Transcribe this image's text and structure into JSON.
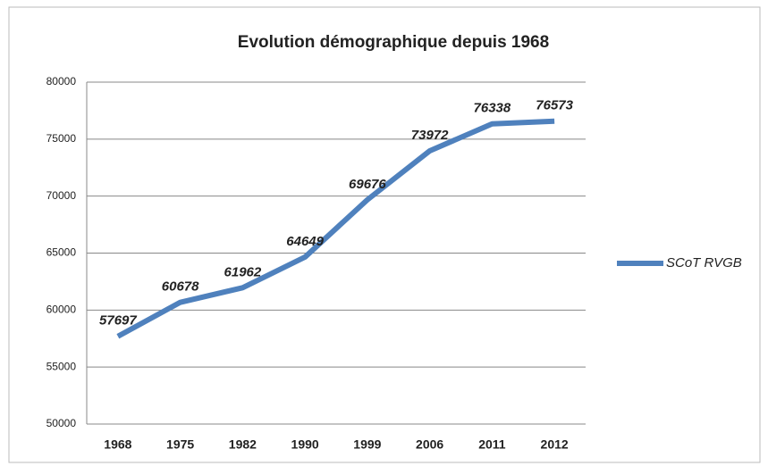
{
  "chart_data": {
    "type": "line",
    "title": "Evolution démographique depuis 1968",
    "categories": [
      "1968",
      "1975",
      "1982",
      "1990",
      "1999",
      "2006",
      "2011",
      "2012"
    ],
    "series": [
      {
        "name": "SCoT RVGB",
        "color": "#4f81bd",
        "values": [
          57697,
          60678,
          61962,
          64649,
          69676,
          73972,
          76338,
          76573
        ]
      }
    ],
    "ylim": [
      50000,
      80000
    ],
    "yticks": [
      50000,
      55000,
      60000,
      65000,
      70000,
      75000,
      80000
    ],
    "grid": true,
    "legend": "right"
  }
}
